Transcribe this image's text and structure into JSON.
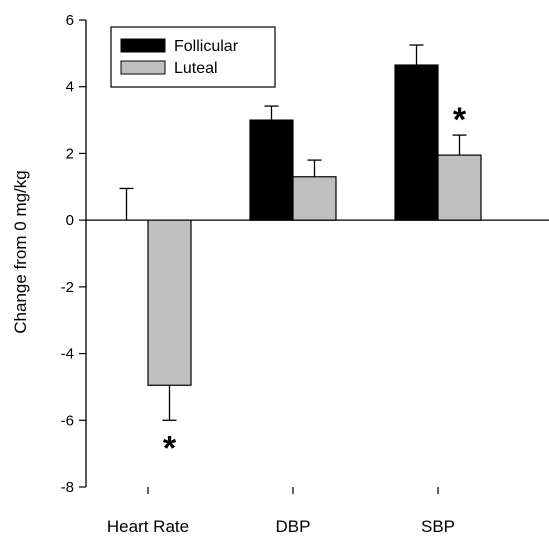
{
  "chart_data": {
    "type": "bar",
    "categories": [
      "Heart Rate",
      "DBP",
      "SBP"
    ],
    "series": [
      {
        "name": "Follicular",
        "color": "#000000",
        "values": [
          0.0,
          3.0,
          4.65
        ],
        "errors": [
          0.95,
          0.42,
          0.6
        ],
        "significance": [
          "",
          "",
          ""
        ]
      },
      {
        "name": "Luteal",
        "color": "#c0c0c0",
        "values": [
          -4.95,
          1.3,
          1.95
        ],
        "errors": [
          1.05,
          0.5,
          0.6
        ],
        "significance": [
          "*",
          "",
          "*"
        ]
      }
    ],
    "ylabel": "Change from 0 mg/kg",
    "ylim": [
      -8,
      6
    ],
    "yticks": [
      -8,
      -6,
      -4,
      -2,
      0,
      2,
      4,
      6
    ],
    "legend_position": "top-left",
    "grid": false
  }
}
